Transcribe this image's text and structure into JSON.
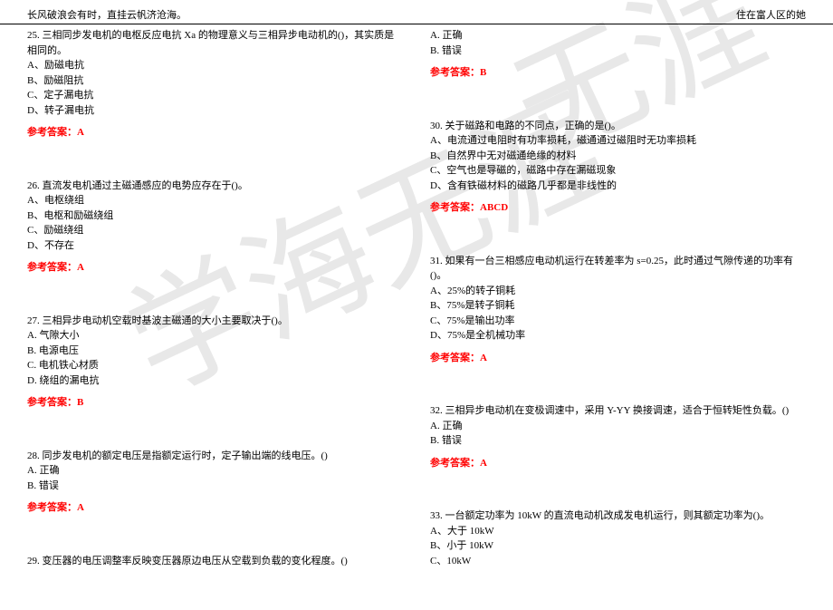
{
  "header": {
    "left": "长风破浪会有时，直挂云帆济沧海。",
    "right": "住在富人区的她"
  },
  "watermark": {
    "text1": "学海无涯",
    "text2": "无涯"
  },
  "left_column": {
    "q25": {
      "text": "25. 三相同步发电机的电枢反应电抗 Xa 的物理意义与三相异步电动机的()，其实质是相同的。",
      "options": {
        "a": "A、励磁电抗",
        "b": "B、励磁阻抗",
        "c": "C、定子漏电抗",
        "d": "D、转子漏电抗"
      },
      "answer": "参考答案：A"
    },
    "q26": {
      "text": "26. 直流发电机通过主磁通感应的电势应存在于()。",
      "options": {
        "a": "A、电枢绕组",
        "b": "B、电枢和励磁绕组",
        "c": "C、励磁绕组",
        "d": "D、不存在"
      },
      "answer": "参考答案：A"
    },
    "q27": {
      "text": "27. 三相异步电动机空载时基波主磁通的大小主要取决于()。",
      "options": {
        "a": "A. 气隙大小",
        "b": "B. 电源电压",
        "c": "C. 电机铁心材质",
        "d": "D. 绕组的漏电抗"
      },
      "answer": "参考答案：B"
    },
    "q28": {
      "text": "28. 同步发电机的额定电压是指额定运行时，定子输出端的线电压。()",
      "options": {
        "a": "A. 正确",
        "b": "B. 错误"
      },
      "answer": "参考答案：A"
    },
    "q29": {
      "text": "29. 变压器的电压调整率反映变压器原边电压从空载到负载的变化程度。()"
    }
  },
  "right_column": {
    "q29_cont": {
      "options": {
        "a": "A. 正确",
        "b": "B. 错误"
      },
      "answer": "参考答案：B"
    },
    "q30": {
      "text": "30. 关于磁路和电路的不同点，正确的是()。",
      "options": {
        "a": "A、电流通过电阻时有功率损耗，磁通通过磁阻时无功率损耗",
        "b": "B、自然界中无对磁通绝缘的材料",
        "c": "C、空气也是导磁的，磁路中存在漏磁现象",
        "d": "D、含有铁磁材料的磁路几乎都是非线性的"
      },
      "answer": "参考答案：ABCD"
    },
    "q31": {
      "text": "31. 如果有一台三相感应电动机运行在转差率为 s=0.25，此时通过气隙传递的功率有()。",
      "options": {
        "a": "A、25%的转子铜耗",
        "b": "B、75%是转子铜耗",
        "c": "C、75%是输出功率",
        "d": "D、75%是全机械功率"
      },
      "answer": "参考答案：A"
    },
    "q32": {
      "text": "32. 三相异步电动机在变极调速中，采用 Y-YY 换接调速，适合于恒转矩性负载。()",
      "options": {
        "a": "A. 正确",
        "b": "B. 错误"
      },
      "answer": "参考答案：A"
    },
    "q33": {
      "text": "33. 一台额定功率为 10kW 的直流电动机改成发电机运行，则其额定功率为()。",
      "options": {
        "a": "A、大于 10kW",
        "b": "B、小于 10kW",
        "c": "C、10kW"
      }
    }
  }
}
